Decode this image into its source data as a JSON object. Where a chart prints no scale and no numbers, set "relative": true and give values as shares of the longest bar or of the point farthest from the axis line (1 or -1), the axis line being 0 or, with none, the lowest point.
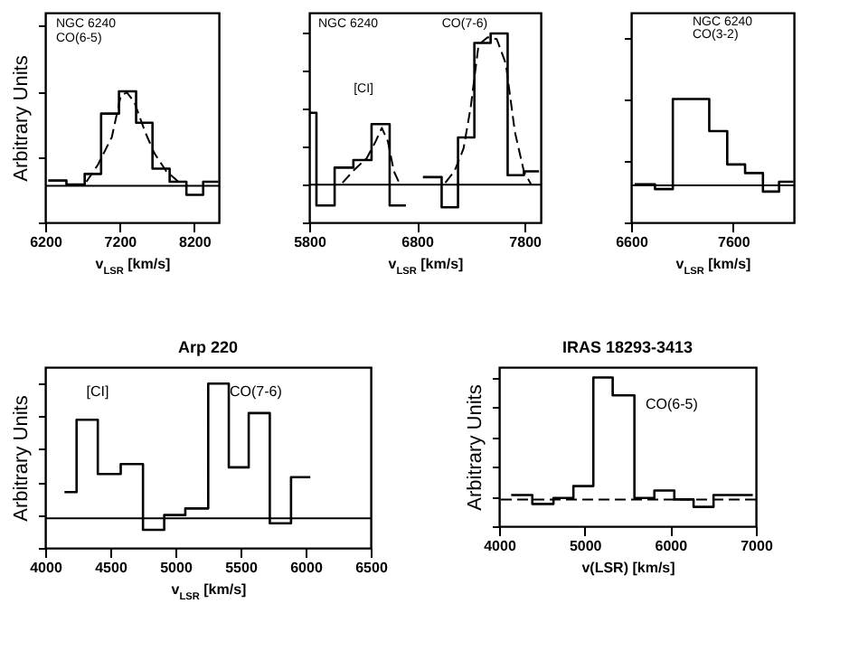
{
  "chart_data": [
    {
      "type": "step",
      "relative": true,
      "xlabel": "v$_{LSR}$ [km/s]",
      "ylabel": "Arbitrary Units",
      "xlim": [
        6200,
        8530
      ],
      "xticks": [
        6200,
        7200,
        8200
      ],
      "series": [
        {
          "color": "#000000",
          "x": [
            6240,
            6485,
            6730,
            6950,
            7190,
            7420,
            7640,
            7870,
            8095,
            8320,
            8525
          ],
          "values": [
            0.32,
            0.29,
            0.37,
            0.83,
            1.0,
            0.76,
            0.41,
            0.31,
            0.21,
            0.31,
            0.31
          ]
        },
        {
          "type": "line",
          "color": "#000000",
          "line_style": "dashed",
          "x": [
            6753,
            6907,
            7094,
            7216,
            7297,
            7395,
            7541,
            7663,
            7826,
            8029
          ],
          "values": [
            0.31,
            0.44,
            0.65,
            0.97,
            0.99,
            0.92,
            0.69,
            0.53,
            0.39,
            0.29
          ]
        }
      ],
      "ref_lines": [
        {
          "axis": "y",
          "value": 0.28,
          "color": "#000000"
        }
      ],
      "annotations": [
        "NGC 6240",
        "CO(6-5)"
      ]
    },
    {
      "type": "step",
      "relative": true,
      "xlabel": "v$_{LSR}$ [km/s]",
      "xlim": [
        5800,
        7950
      ],
      "xticks": [
        5800,
        6800,
        7800
      ],
      "series": [
        {
          "color": "#000000",
          "x": [
            5800,
            5867,
            6036,
            6210,
            6379,
            6547,
            6699
          ],
          "values": [
            0.58,
            0.09,
            0.29,
            0.33,
            0.52,
            0.09,
            0.09
          ]
        },
        {
          "color": "#000000",
          "x": [
            6856,
            7030,
            7182,
            7334,
            7485,
            7643,
            7794,
            7935
          ],
          "values": [
            0.24,
            0.08,
            0.45,
            0.95,
            1.0,
            0.25,
            0.27,
            0.27
          ]
        },
        {
          "type": "line",
          "color": "#000000",
          "line_style": "dashed",
          "x": [
            6109,
            6221,
            6334,
            6418,
            6474,
            6530,
            6587,
            6643
          ],
          "values": [
            0.21,
            0.28,
            0.34,
            0.43,
            0.5,
            0.43,
            0.27,
            0.2
          ]
        },
        {
          "type": "line",
          "color": "#000000",
          "line_style": "dashed",
          "x": [
            7064,
            7148,
            7233,
            7300,
            7373,
            7457,
            7542,
            7626,
            7710,
            7794,
            7862
          ],
          "values": [
            0.21,
            0.27,
            0.39,
            0.61,
            0.94,
            0.98,
            0.97,
            0.84,
            0.48,
            0.27,
            0.2
          ]
        }
      ],
      "ref_lines": [
        {
          "axis": "y",
          "value": 0.2,
          "color": "#000000"
        }
      ],
      "annotations": [
        "NGC 6240",
        "CO(7-6)",
        "[CI]"
      ]
    },
    {
      "type": "step",
      "relative": true,
      "xlabel": "v$_{LSR}$ [km/s]",
      "xlim": [
        6600,
        8195
      ],
      "xticks": [
        6600,
        7600
      ],
      "series": [
        {
          "color": "#000000",
          "x": [
            6635,
            6834,
            7009,
            7366,
            7542,
            7717,
            7892,
            8050,
            8191
          ],
          "values": [
            0.31,
            0.27,
            1.0,
            0.74,
            0.47,
            0.4,
            0.25,
            0.33,
            0.33
          ]
        }
      ],
      "ref_lines": [
        {
          "axis": "y",
          "value": 0.3,
          "color": "#000000"
        }
      ],
      "annotations": [
        "NGC 6240",
        "CO(3-2)"
      ]
    },
    {
      "type": "step",
      "relative": true,
      "title": "Arp 220",
      "xlabel": "v$_{LSR}$ [km/s]",
      "ylabel": "Arbitrary Units",
      "xlim": [
        4000,
        6500
      ],
      "xticks": [
        4000,
        4500,
        5000,
        5500,
        6000,
        6500
      ],
      "series": [
        {
          "color": "#000000",
          "x": [
            4148,
            4241,
            4404,
            4580,
            4751,
            4914,
            5076,
            5252,
            5410,
            5563,
            5725,
            5888,
            6036
          ],
          "values": [
            0.34,
            0.78,
            0.45,
            0.51,
            0.11,
            0.2,
            0.24,
            1.0,
            0.49,
            0.82,
            0.15,
            0.43,
            0.43
          ]
        }
      ],
      "ref_lines": [
        {
          "axis": "y",
          "value": 0.18,
          "color": "#000000"
        }
      ],
      "annotations": [
        "[CI]",
        "CO(7-6)"
      ]
    },
    {
      "type": "step",
      "relative": true,
      "title": "IRAS 18293-3413",
      "xlabel": "v(LSR) [km/s]",
      "ylabel": "Arbitrary Units",
      "xlim": [
        4000,
        7000
      ],
      "xticks": [
        4000,
        5000,
        6000,
        7000
      ],
      "series": [
        {
          "color": "#000000",
          "x": [
            4141,
            4388,
            4635,
            4868,
            5101,
            5327,
            5581,
            5814,
            6047,
            6272,
            6505,
            6964
          ],
          "values": [
            0.21,
            0.15,
            0.19,
            0.27,
            1.0,
            0.88,
            0.19,
            0.24,
            0.18,
            0.13,
            0.21,
            0.21
          ]
        }
      ],
      "ref_lines": [
        {
          "axis": "y",
          "value": 0.18,
          "color": "#000000",
          "line_style": "dashed"
        }
      ],
      "annotations": [
        "CO(6-5)"
      ]
    }
  ]
}
